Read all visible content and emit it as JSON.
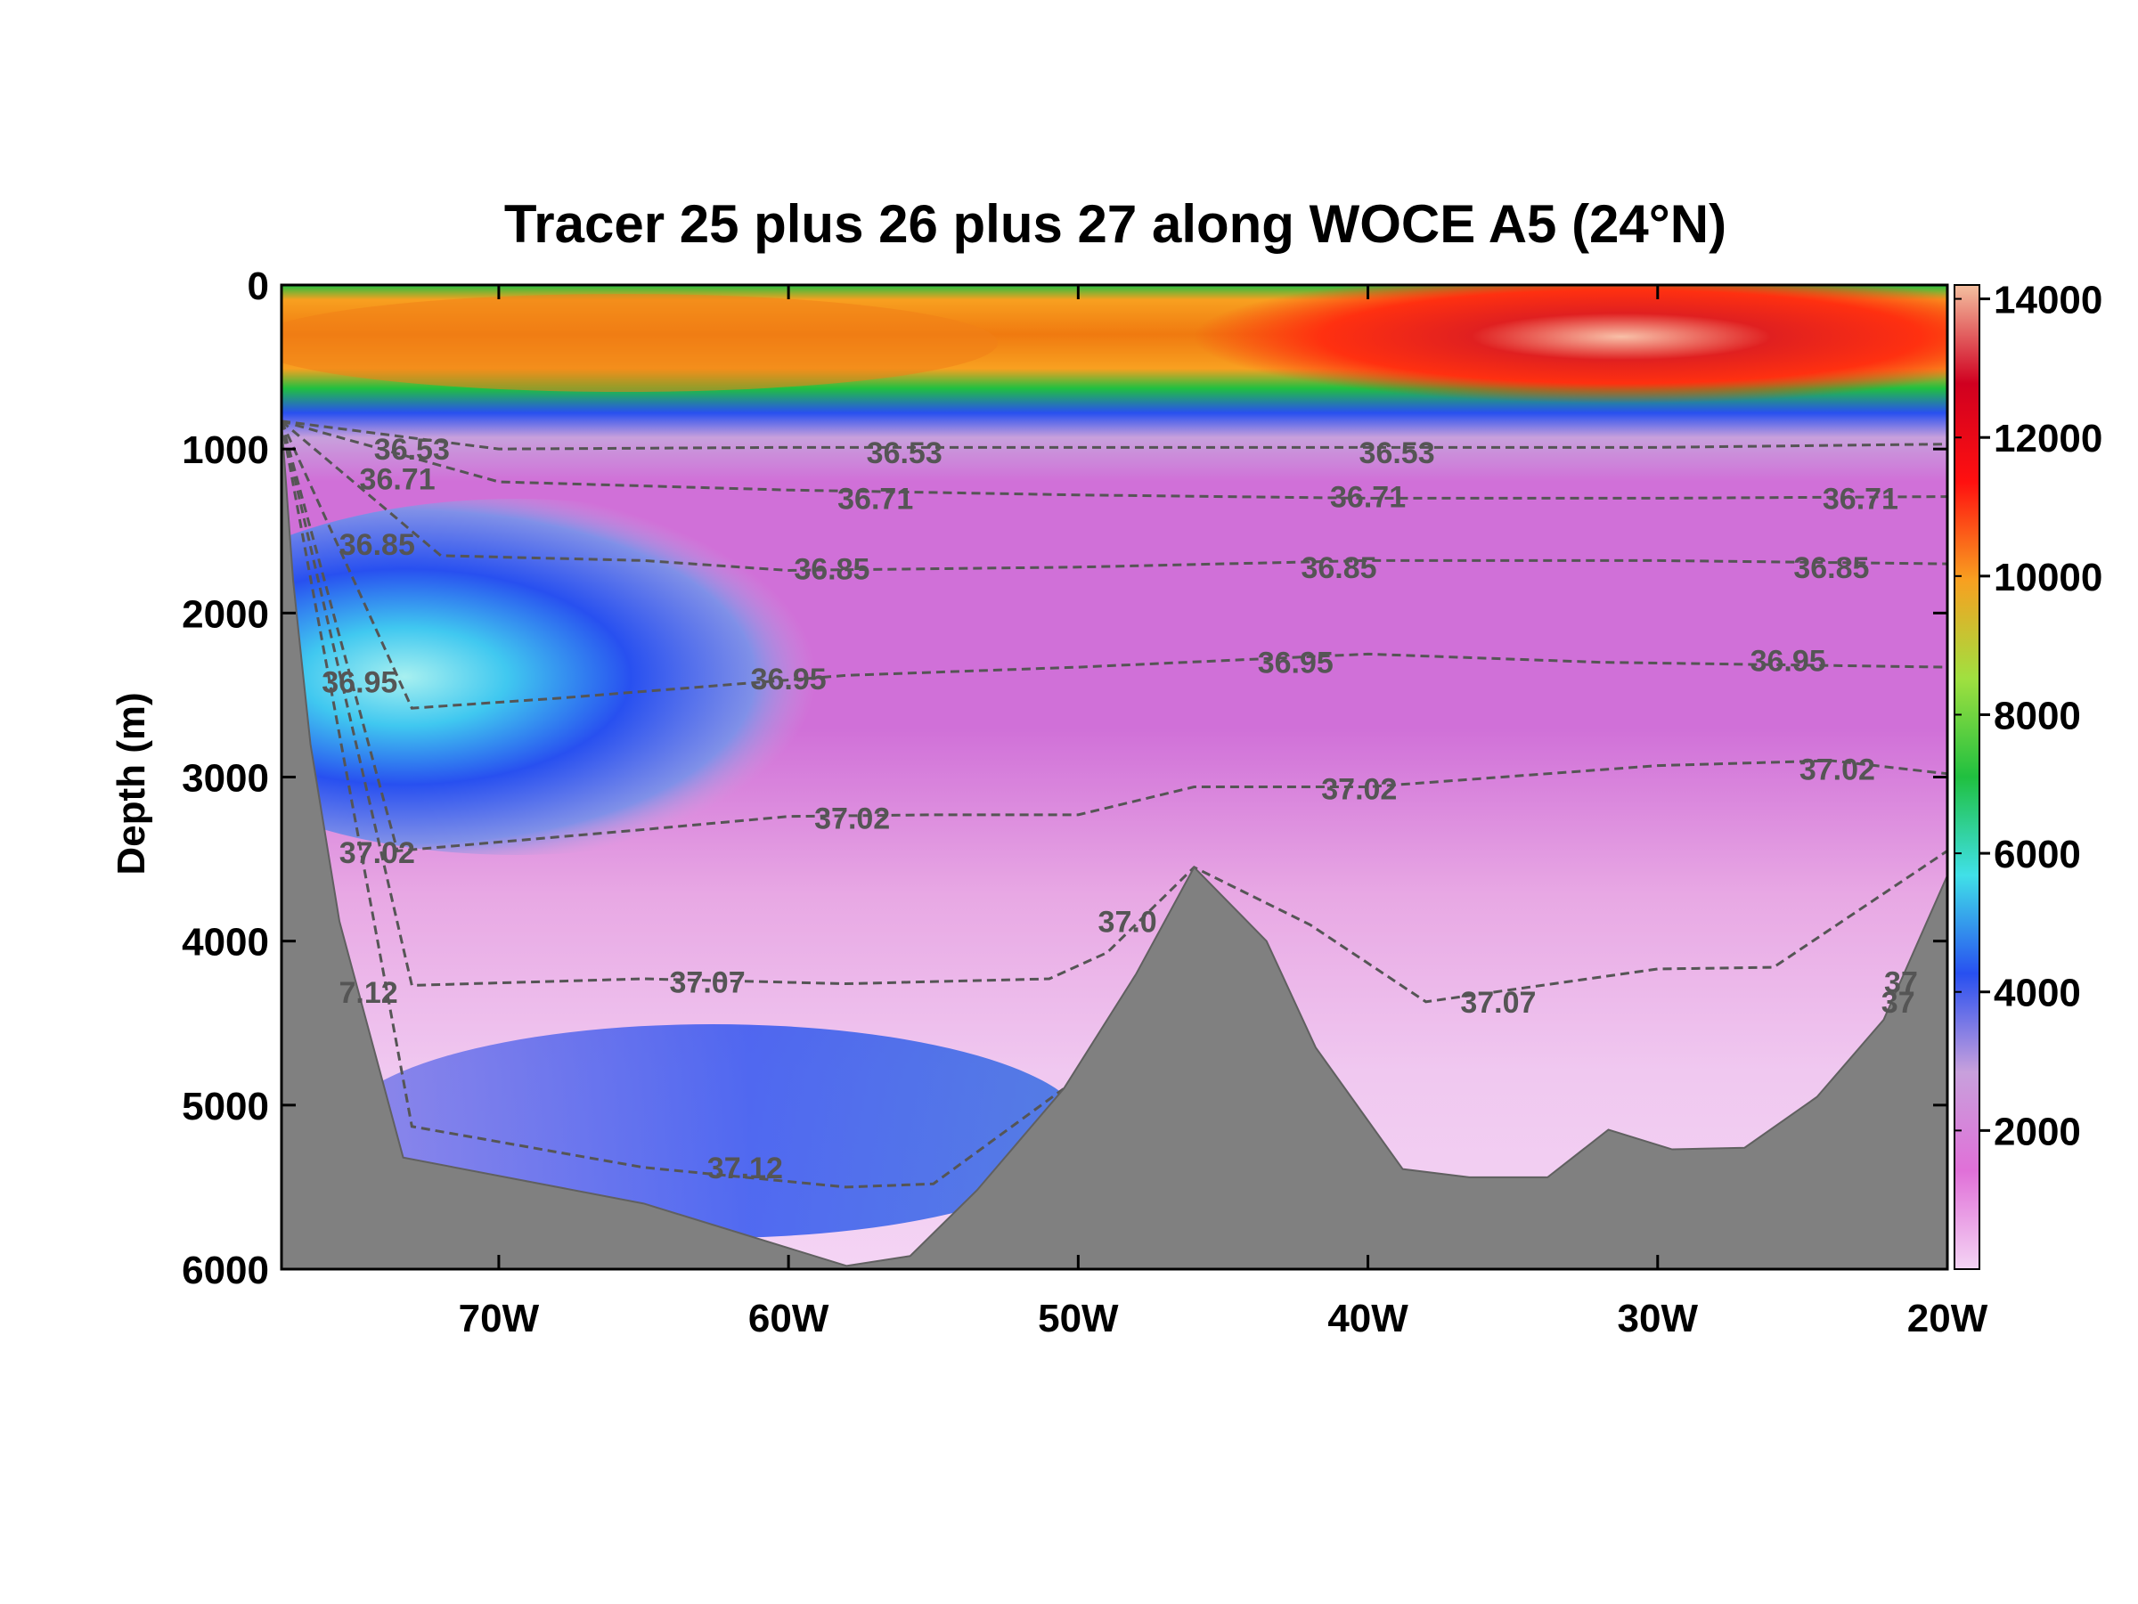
{
  "chart_data": {
    "type": "heatmap",
    "title": "Tracer 25 plus 26 plus 27 along WOCE A5 (24°N)",
    "ylabel": "Depth (m)",
    "xlabel": "",
    "x_range": [
      -77.5,
      -20
    ],
    "y_range": [
      0,
      6000
    ],
    "y_inverted": true,
    "x_ticks": [
      -70,
      -60,
      -50,
      -40,
      -30,
      -20
    ],
    "x_tick_labels": [
      "70W",
      "60W",
      "50W",
      "40W",
      "30W",
      "20W"
    ],
    "y_ticks": [
      0,
      1000,
      2000,
      3000,
      4000,
      5000,
      6000
    ],
    "y_tick_labels": [
      "0",
      "1000",
      "2000",
      "3000",
      "4000",
      "5000",
      "6000"
    ],
    "colorbar": {
      "range": [
        0,
        14200
      ],
      "ticks": [
        2000,
        4000,
        6000,
        8000,
        10000,
        12000,
        14000
      ],
      "tick_labels": [
        "2000",
        "4000",
        "6000",
        "8000",
        "10000",
        "12000",
        "14000"
      ],
      "colors": [
        "#f4d4f4",
        "#e070d8",
        "#c8a0dc",
        "#2850f0",
        "#40e0e8",
        "#20c040",
        "#a0e040",
        "#f8a020",
        "#ff1010",
        "#d00020",
        "#f4c0a0"
      ]
    },
    "bathymetry": {
      "x": [
        -77.5,
        -77.1,
        -76.5,
        -75.5,
        -73.3,
        -65,
        -58,
        -55.8,
        -53.5,
        -50.5,
        -48,
        -46,
        -43.5,
        -41.8,
        -38.8,
        -36.5,
        -33.8,
        -31.7,
        -29.5,
        -27,
        -24.5,
        -22.2,
        -20
      ],
      "depth": [
        830,
        1800,
        2800,
        3880,
        5320,
        5600,
        5980,
        5920,
        5520,
        4900,
        4200,
        3550,
        4000,
        4650,
        5390,
        5440,
        5440,
        5150,
        5270,
        5260,
        4950,
        4480,
        3600
      ]
    },
    "contours": [
      {
        "level": "36.53",
        "x": [
          -77.5,
          -70,
          -60,
          -50,
          -40,
          -30,
          -20
        ],
        "depth": [
          830,
          1000,
          990,
          990,
          990,
          990,
          970
        ]
      },
      {
        "level": "36.71",
        "x": [
          -77.5,
          -70,
          -60,
          -50,
          -40,
          -30,
          -20
        ],
        "depth": [
          830,
          1200,
          1250,
          1280,
          1300,
          1300,
          1290
        ]
      },
      {
        "level": "36.85",
        "x": [
          -77.5,
          -72,
          -65,
          -60,
          -50,
          -40,
          -30,
          -20
        ],
        "depth": [
          830,
          1650,
          1680,
          1740,
          1720,
          1680,
          1680,
          1700
        ]
      },
      {
        "level": "36.95",
        "x": [
          -77.5,
          -73,
          -68,
          -63,
          -58,
          -50,
          -40,
          -32,
          -20
        ],
        "depth": [
          830,
          2580,
          2520,
          2450,
          2380,
          2330,
          2250,
          2300,
          2330
        ]
      },
      {
        "level": "37.02",
        "x": [
          -77.5,
          -73.5,
          -65,
          -60,
          -55,
          -50,
          -46,
          -40,
          -30,
          -24,
          -20
        ],
        "depth": [
          830,
          3450,
          3320,
          3240,
          3230,
          3230,
          3060,
          3060,
          2930,
          2900,
          2980
        ]
      },
      {
        "level": "37.07",
        "x": [
          -77.5,
          -73,
          -65,
          -58,
          -51,
          -49,
          -46,
          -42,
          -38,
          -30,
          -26,
          -20
        ],
        "depth": [
          830,
          4270,
          4230,
          4260,
          4230,
          4070,
          3550,
          3900,
          4370,
          4170,
          4160,
          3450
        ]
      },
      {
        "level": "37.12",
        "x": [
          -77.5,
          -73,
          -65,
          -58,
          -55,
          -50.5
        ],
        "depth": [
          830,
          5130,
          5380,
          5500,
          5480,
          4900
        ]
      }
    ],
    "contour_labels": [
      {
        "text": "36.53",
        "x": -73,
        "depth": 1000
      },
      {
        "text": "36.53",
        "x": -56,
        "depth": 1020
      },
      {
        "text": "36.53",
        "x": -39,
        "depth": 1020
      },
      {
        "text": "36.71",
        "x": -73.5,
        "depth": 1180
      },
      {
        "text": "36.71",
        "x": -57,
        "depth": 1300
      },
      {
        "text": "36.71",
        "x": -40,
        "depth": 1290
      },
      {
        "text": "36.71",
        "x": -23,
        "depth": 1300
      },
      {
        "text": "36.85",
        "x": -74.2,
        "depth": 1580
      },
      {
        "text": "36.85",
        "x": -58.5,
        "depth": 1730
      },
      {
        "text": "36.85",
        "x": -41,
        "depth": 1720
      },
      {
        "text": "36.85",
        "x": -24,
        "depth": 1720
      },
      {
        "text": "36.95",
        "x": -74.8,
        "depth": 2420
      },
      {
        "text": "36.95",
        "x": -60,
        "depth": 2400
      },
      {
        "text": "36.95",
        "x": -42.5,
        "depth": 2300
      },
      {
        "text": "36.95",
        "x": -25.5,
        "depth": 2290
      },
      {
        "text": "37.02",
        "x": -74.2,
        "depth": 3460
      },
      {
        "text": "37.02",
        "x": -57.8,
        "depth": 3250
      },
      {
        "text": "37.02",
        "x": -40.3,
        "depth": 3070
      },
      {
        "text": "37.02",
        "x": -23.8,
        "depth": 2950
      },
      {
        "text": "37.0",
        "x": -48.3,
        "depth": 3880
      },
      {
        "text": "37.07",
        "x": -62.8,
        "depth": 4250
      },
      {
        "text": "37.07",
        "x": -35.5,
        "depth": 4370
      },
      {
        "text": "7.12",
        "x": -74.5,
        "depth": 4310
      },
      {
        "text": "37.12",
        "x": -61.5,
        "depth": 5380
      },
      {
        "text": "37",
        "x": -21.6,
        "depth": 4250
      },
      {
        "text": "37",
        "x": -21.7,
        "depth": 4370
      }
    ]
  }
}
